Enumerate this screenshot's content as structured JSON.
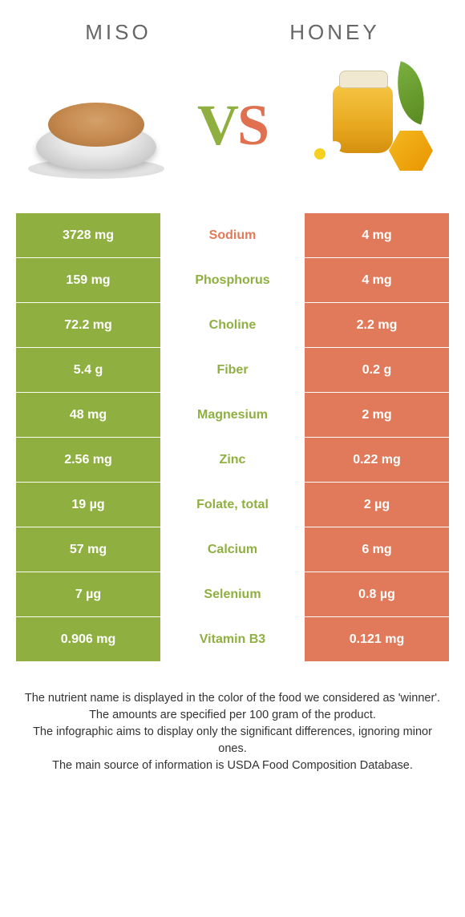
{
  "header": {
    "left_title": "Miso",
    "right_title": "Honey"
  },
  "vs": {
    "v": "V",
    "s": "S"
  },
  "colors": {
    "green": "#8fb040",
    "orange": "#e07a5a",
    "white": "#ffffff",
    "text_gray": "#666666"
  },
  "table": {
    "left_bg": "#8fb040",
    "right_bg": "#e07a5a",
    "rows": [
      {
        "left": "3728 mg",
        "mid": "Sodium",
        "mid_color": "orange",
        "right": "4 mg"
      },
      {
        "left": "159 mg",
        "mid": "Phosphorus",
        "mid_color": "green",
        "right": "4 mg"
      },
      {
        "left": "72.2 mg",
        "mid": "Choline",
        "mid_color": "green",
        "right": "2.2 mg"
      },
      {
        "left": "5.4 g",
        "mid": "Fiber",
        "mid_color": "green",
        "right": "0.2 g"
      },
      {
        "left": "48 mg",
        "mid": "Magnesium",
        "mid_color": "green",
        "right": "2 mg"
      },
      {
        "left": "2.56 mg",
        "mid": "Zinc",
        "mid_color": "green",
        "right": "0.22 mg"
      },
      {
        "left": "19 µg",
        "mid": "Folate, total",
        "mid_color": "green",
        "right": "2 µg"
      },
      {
        "left": "57 mg",
        "mid": "Calcium",
        "mid_color": "green",
        "right": "6 mg"
      },
      {
        "left": "7 µg",
        "mid": "Selenium",
        "mid_color": "green",
        "right": "0.8 µg"
      },
      {
        "left": "0.906 mg",
        "mid": "Vitamin B3",
        "mid_color": "green",
        "right": "0.121 mg"
      }
    ]
  },
  "footer": {
    "line1": "The nutrient name is displayed in the color of the food we considered as 'winner'.",
    "line2": "The amounts are specified per 100 gram of the product.",
    "line3": "The infographic aims to display only the significant differences, ignoring minor ones.",
    "line4": "The main source of information is USDA Food Composition Database."
  }
}
